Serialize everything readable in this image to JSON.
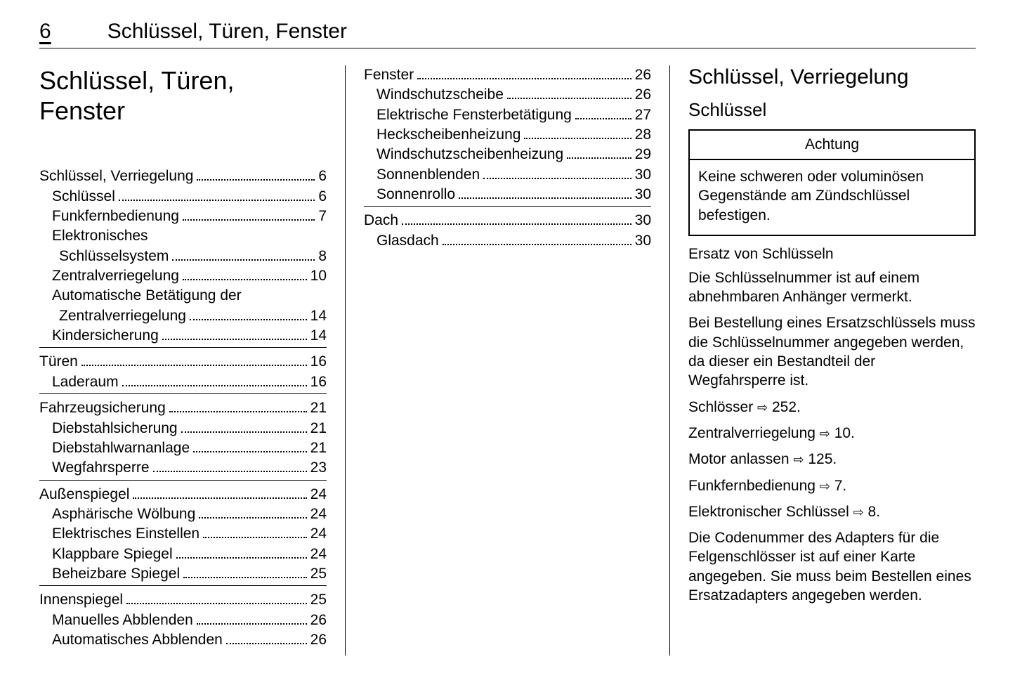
{
  "page_number": "6",
  "header_title": "Schlüssel, Türen, Fenster",
  "chapter_title": "Schlüssel, Türen, Fenster",
  "toc_col1": [
    {
      "items": [
        {
          "label": "Schlüssel, Verriegelung",
          "page": "6",
          "level": 0
        },
        {
          "label": "Schlüssel",
          "page": "6",
          "level": 1
        },
        {
          "label": "Funkfernbedienung",
          "page": "7",
          "level": 1
        },
        {
          "label": "Elektronisches Schlüsselsystem",
          "page": "8",
          "level": 1,
          "wrap": true
        },
        {
          "label": "Zentralverriegelung",
          "page": "10",
          "level": 1
        },
        {
          "label": "Automatische Betätigung der Zentralverriegelung",
          "page": "14",
          "level": 1,
          "wrap": true
        },
        {
          "label": "Kindersicherung",
          "page": "14",
          "level": 1
        }
      ]
    },
    {
      "items": [
        {
          "label": "Türen",
          "page": "16",
          "level": 0
        },
        {
          "label": "Laderaum",
          "page": "16",
          "level": 1
        }
      ]
    },
    {
      "items": [
        {
          "label": "Fahrzeugsicherung",
          "page": "21",
          "level": 0
        },
        {
          "label": "Diebstahlsicherung",
          "page": "21",
          "level": 1
        },
        {
          "label": "Diebstahlwarnanlage",
          "page": "21",
          "level": 1
        },
        {
          "label": "Wegfahrsperre",
          "page": "23",
          "level": 1
        }
      ]
    },
    {
      "items": [
        {
          "label": "Außenspiegel",
          "page": "24",
          "level": 0
        },
        {
          "label": "Asphärische Wölbung",
          "page": "24",
          "level": 1
        },
        {
          "label": "Elektrisches Einstellen",
          "page": "24",
          "level": 1
        },
        {
          "label": "Klappbare Spiegel",
          "page": "24",
          "level": 1
        },
        {
          "label": "Beheizbare Spiegel",
          "page": "25",
          "level": 1
        }
      ]
    },
    {
      "noborder": true,
      "items": [
        {
          "label": "Innenspiegel",
          "page": "25",
          "level": 0
        },
        {
          "label": "Manuelles Abblenden",
          "page": "26",
          "level": 1
        },
        {
          "label": "Automatisches Abblenden",
          "page": "26",
          "level": 1
        }
      ]
    }
  ],
  "toc_col2": [
    {
      "items": [
        {
          "label": "Fenster",
          "page": "26",
          "level": 0
        },
        {
          "label": "Windschutzscheibe",
          "page": "26",
          "level": 1
        },
        {
          "label": "Elektrische Fensterbetätigung",
          "page": "27",
          "level": 1
        },
        {
          "label": "Heckscheibenheizung",
          "page": "28",
          "level": 1
        },
        {
          "label": "Windschutzscheibenheizung",
          "page": "29",
          "level": 1
        },
        {
          "label": "Sonnenblenden",
          "page": "30",
          "level": 1
        },
        {
          "label": "Sonnenrollo",
          "page": "30",
          "level": 1
        }
      ]
    },
    {
      "noborder": true,
      "items": [
        {
          "label": "Dach",
          "page": "30",
          "level": 0
        },
        {
          "label": "Glasdach",
          "page": "30",
          "level": 1
        }
      ]
    }
  ],
  "right": {
    "h1": "Schlüssel, Verriegelung",
    "h2": "Schlüssel",
    "notice_title": "Achtung",
    "notice_body": "Keine schweren oder voluminö­sen Gegenstände am Zünd­schlüssel befestigen.",
    "h3": "Ersatz von Schlüsseln",
    "p1": "Die Schlüsselnummer ist auf einem abnehmbaren Anhänger vermerkt.",
    "p2": "Bei Bestellung eines Ersatzschlüs­sels muss die Schlüsselnummer angegeben werden, da dieser ein Bestandteil der Wegfahrsperre ist.",
    "ref1_a": "Schlösser ",
    "ref1_b": " 252.",
    "ref2_a": "Zentralverriegelung ",
    "ref2_b": " 10.",
    "ref3_a": "Motor anlassen ",
    "ref3_b": " 125.",
    "ref4_a": "Funkfernbedienung ",
    "ref4_b": " 7.",
    "ref5_a": "Elektronischer Schlüssel ",
    "ref5_b": " 8.",
    "p3": "Die Codenummer des Adapters für die Felgenschlösser ist auf einer Karte angegeben. Sie muss beim Bestellen eines Ersatzadapters ange­geben werden."
  }
}
